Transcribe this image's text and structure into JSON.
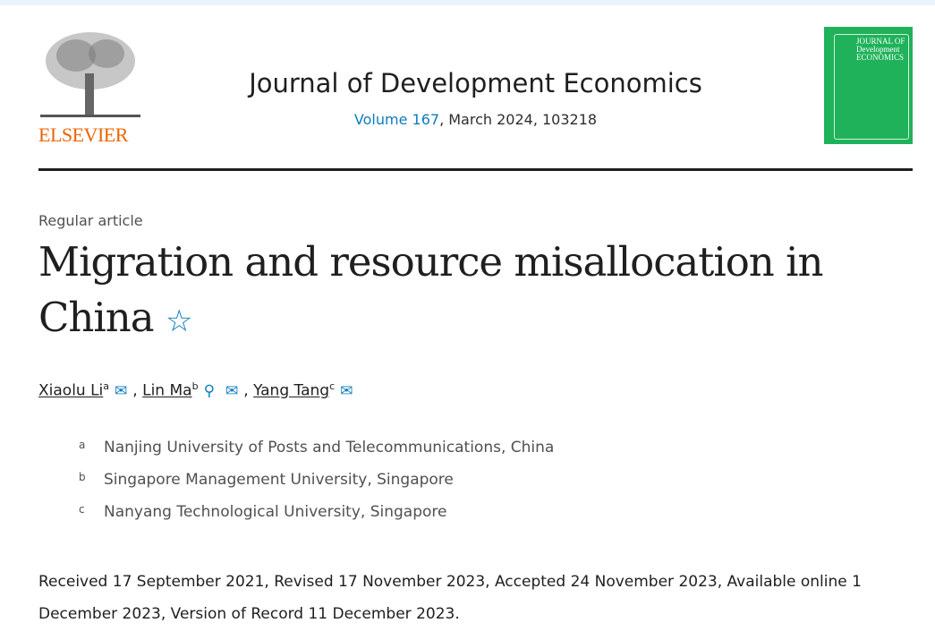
{
  "publisher": {
    "logo_text": "ELSEVIER",
    "brand_color": "#eb6500"
  },
  "journal": {
    "title": "Journal of Development Economics",
    "volume_link": "Volume 167",
    "meta_rest": ", March 2024, 103218",
    "cover_text": "JOURNAL OF Development ECONOMICS",
    "cover_color": "#1fb25a"
  },
  "article": {
    "type": "Regular article",
    "title": "Migration and resource misallocation in China",
    "title_icon": "star-icon"
  },
  "authors": [
    {
      "name": "Xiaolu Li",
      "sup": "a",
      "icons": [
        "envelope-icon"
      ]
    },
    {
      "name": "Lin Ma",
      "sup": "b",
      "icons": [
        "person-icon",
        "envelope-icon"
      ]
    },
    {
      "name": "Yang Tang",
      "sup": "c",
      "icons": [
        "envelope-icon"
      ]
    }
  ],
  "separator": ",",
  "affiliations": [
    {
      "sup": "a",
      "text": "Nanjing University of Posts and Telecommunications, China"
    },
    {
      "sup": "b",
      "text": "Singapore Management University, Singapore"
    },
    {
      "sup": "c",
      "text": "Nanyang Technological University, Singapore"
    }
  ],
  "dates": "Received 17 September 2021, Revised 17 November 2023, Accepted 24 November 2023, Available online 1 December 2023, Version of Record 11 December 2023."
}
